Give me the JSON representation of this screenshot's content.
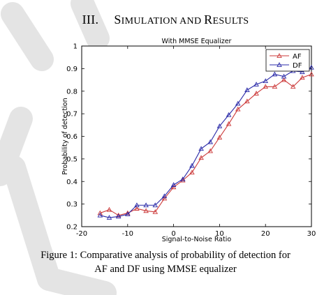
{
  "section": {
    "number": "III.",
    "title_parts": [
      {
        "text": "S",
        "small": false
      },
      {
        "text": "IMULATION AND ",
        "small": true
      },
      {
        "text": "R",
        "small": false
      },
      {
        "text": "ESULTS",
        "small": true
      }
    ]
  },
  "chart_data": {
    "type": "line",
    "title": "With MMSE Equalizer",
    "xlabel": "Signal-to-Noise Ratio",
    "ylabel": "Probability of detection",
    "xlim": [
      -20,
      30
    ],
    "ylim": [
      0.2,
      1
    ],
    "xticks": [
      -20,
      -10,
      0,
      10,
      20,
      30
    ],
    "yticks": [
      0.2,
      0.3,
      0.4,
      0.5,
      0.6,
      0.7,
      0.8,
      0.9,
      1
    ],
    "xtick_labels": [
      "-20",
      "-10",
      "0",
      "10",
      "20",
      "30"
    ],
    "ytick_labels": [
      "0.2",
      "0.3",
      "0.4",
      "0.5",
      "0.6",
      "0.7",
      "0.8",
      "0.9",
      "1"
    ],
    "grid": false,
    "legend_position": "top-right",
    "x": [
      -16,
      -14,
      -12,
      -10,
      -8,
      -6,
      -4,
      -2,
      0,
      2,
      4,
      6,
      8,
      10,
      12,
      14,
      16,
      18,
      20,
      22,
      24,
      26,
      28,
      30
    ],
    "series": [
      {
        "name": "AF",
        "color": "#cc3a3a",
        "marker": "triangle-up",
        "values": [
          0.26,
          0.275,
          0.25,
          0.26,
          0.28,
          0.27,
          0.265,
          0.325,
          0.375,
          0.405,
          0.44,
          0.505,
          0.535,
          0.595,
          0.655,
          0.72,
          0.755,
          0.79,
          0.82,
          0.82,
          0.85,
          0.82,
          0.86,
          0.875
        ]
      },
      {
        "name": "DF",
        "color": "#2a2aa8",
        "marker": "triangle-up",
        "values": [
          0.25,
          0.24,
          0.245,
          0.255,
          0.295,
          0.295,
          0.295,
          0.335,
          0.385,
          0.41,
          0.47,
          0.545,
          0.575,
          0.645,
          0.695,
          0.745,
          0.805,
          0.83,
          0.845,
          0.875,
          0.865,
          0.89,
          0.885,
          0.905
        ]
      }
    ]
  },
  "caption": {
    "line1": "Figure 1: Comparative analysis of probability of detection for",
    "line2": "AF and DF using MMSE equalizer"
  }
}
